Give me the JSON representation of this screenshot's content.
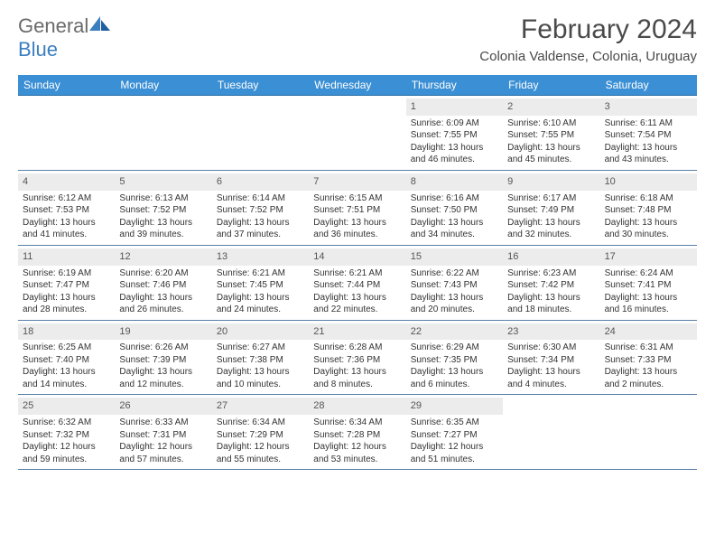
{
  "brand": {
    "part1": "General",
    "part2": "Blue"
  },
  "title": "February 2024",
  "location": "Colonia Valdense, Colonia, Uruguay",
  "colors": {
    "header_bg": "#3b8fd4",
    "header_text": "#ffffff",
    "daynum_bg": "#ececec",
    "cell_border": "#5a7fa8",
    "text": "#333333",
    "logo_gray": "#6a6a6a",
    "logo_blue": "#3b7fbf"
  },
  "day_names": [
    "Sunday",
    "Monday",
    "Tuesday",
    "Wednesday",
    "Thursday",
    "Friday",
    "Saturday"
  ],
  "weeks": [
    [
      {
        "blank": true
      },
      {
        "blank": true
      },
      {
        "blank": true
      },
      {
        "blank": true
      },
      {
        "day": "1",
        "sunrise": "Sunrise: 6:09 AM",
        "sunset": "Sunset: 7:55 PM",
        "daylight": "Daylight: 13 hours and 46 minutes."
      },
      {
        "day": "2",
        "sunrise": "Sunrise: 6:10 AM",
        "sunset": "Sunset: 7:55 PM",
        "daylight": "Daylight: 13 hours and 45 minutes."
      },
      {
        "day": "3",
        "sunrise": "Sunrise: 6:11 AM",
        "sunset": "Sunset: 7:54 PM",
        "daylight": "Daylight: 13 hours and 43 minutes."
      }
    ],
    [
      {
        "day": "4",
        "sunrise": "Sunrise: 6:12 AM",
        "sunset": "Sunset: 7:53 PM",
        "daylight": "Daylight: 13 hours and 41 minutes."
      },
      {
        "day": "5",
        "sunrise": "Sunrise: 6:13 AM",
        "sunset": "Sunset: 7:52 PM",
        "daylight": "Daylight: 13 hours and 39 minutes."
      },
      {
        "day": "6",
        "sunrise": "Sunrise: 6:14 AM",
        "sunset": "Sunset: 7:52 PM",
        "daylight": "Daylight: 13 hours and 37 minutes."
      },
      {
        "day": "7",
        "sunrise": "Sunrise: 6:15 AM",
        "sunset": "Sunset: 7:51 PM",
        "daylight": "Daylight: 13 hours and 36 minutes."
      },
      {
        "day": "8",
        "sunrise": "Sunrise: 6:16 AM",
        "sunset": "Sunset: 7:50 PM",
        "daylight": "Daylight: 13 hours and 34 minutes."
      },
      {
        "day": "9",
        "sunrise": "Sunrise: 6:17 AM",
        "sunset": "Sunset: 7:49 PM",
        "daylight": "Daylight: 13 hours and 32 minutes."
      },
      {
        "day": "10",
        "sunrise": "Sunrise: 6:18 AM",
        "sunset": "Sunset: 7:48 PM",
        "daylight": "Daylight: 13 hours and 30 minutes."
      }
    ],
    [
      {
        "day": "11",
        "sunrise": "Sunrise: 6:19 AM",
        "sunset": "Sunset: 7:47 PM",
        "daylight": "Daylight: 13 hours and 28 minutes."
      },
      {
        "day": "12",
        "sunrise": "Sunrise: 6:20 AM",
        "sunset": "Sunset: 7:46 PM",
        "daylight": "Daylight: 13 hours and 26 minutes."
      },
      {
        "day": "13",
        "sunrise": "Sunrise: 6:21 AM",
        "sunset": "Sunset: 7:45 PM",
        "daylight": "Daylight: 13 hours and 24 minutes."
      },
      {
        "day": "14",
        "sunrise": "Sunrise: 6:21 AM",
        "sunset": "Sunset: 7:44 PM",
        "daylight": "Daylight: 13 hours and 22 minutes."
      },
      {
        "day": "15",
        "sunrise": "Sunrise: 6:22 AM",
        "sunset": "Sunset: 7:43 PM",
        "daylight": "Daylight: 13 hours and 20 minutes."
      },
      {
        "day": "16",
        "sunrise": "Sunrise: 6:23 AM",
        "sunset": "Sunset: 7:42 PM",
        "daylight": "Daylight: 13 hours and 18 minutes."
      },
      {
        "day": "17",
        "sunrise": "Sunrise: 6:24 AM",
        "sunset": "Sunset: 7:41 PM",
        "daylight": "Daylight: 13 hours and 16 minutes."
      }
    ],
    [
      {
        "day": "18",
        "sunrise": "Sunrise: 6:25 AM",
        "sunset": "Sunset: 7:40 PM",
        "daylight": "Daylight: 13 hours and 14 minutes."
      },
      {
        "day": "19",
        "sunrise": "Sunrise: 6:26 AM",
        "sunset": "Sunset: 7:39 PM",
        "daylight": "Daylight: 13 hours and 12 minutes."
      },
      {
        "day": "20",
        "sunrise": "Sunrise: 6:27 AM",
        "sunset": "Sunset: 7:38 PM",
        "daylight": "Daylight: 13 hours and 10 minutes."
      },
      {
        "day": "21",
        "sunrise": "Sunrise: 6:28 AM",
        "sunset": "Sunset: 7:36 PM",
        "daylight": "Daylight: 13 hours and 8 minutes."
      },
      {
        "day": "22",
        "sunrise": "Sunrise: 6:29 AM",
        "sunset": "Sunset: 7:35 PM",
        "daylight": "Daylight: 13 hours and 6 minutes."
      },
      {
        "day": "23",
        "sunrise": "Sunrise: 6:30 AM",
        "sunset": "Sunset: 7:34 PM",
        "daylight": "Daylight: 13 hours and 4 minutes."
      },
      {
        "day": "24",
        "sunrise": "Sunrise: 6:31 AM",
        "sunset": "Sunset: 7:33 PM",
        "daylight": "Daylight: 13 hours and 2 minutes."
      }
    ],
    [
      {
        "day": "25",
        "sunrise": "Sunrise: 6:32 AM",
        "sunset": "Sunset: 7:32 PM",
        "daylight": "Daylight: 12 hours and 59 minutes."
      },
      {
        "day": "26",
        "sunrise": "Sunrise: 6:33 AM",
        "sunset": "Sunset: 7:31 PM",
        "daylight": "Daylight: 12 hours and 57 minutes."
      },
      {
        "day": "27",
        "sunrise": "Sunrise: 6:34 AM",
        "sunset": "Sunset: 7:29 PM",
        "daylight": "Daylight: 12 hours and 55 minutes."
      },
      {
        "day": "28",
        "sunrise": "Sunrise: 6:34 AM",
        "sunset": "Sunset: 7:28 PM",
        "daylight": "Daylight: 12 hours and 53 minutes."
      },
      {
        "day": "29",
        "sunrise": "Sunrise: 6:35 AM",
        "sunset": "Sunset: 7:27 PM",
        "daylight": "Daylight: 12 hours and 51 minutes."
      },
      {
        "blank": true
      },
      {
        "blank": true
      }
    ]
  ]
}
